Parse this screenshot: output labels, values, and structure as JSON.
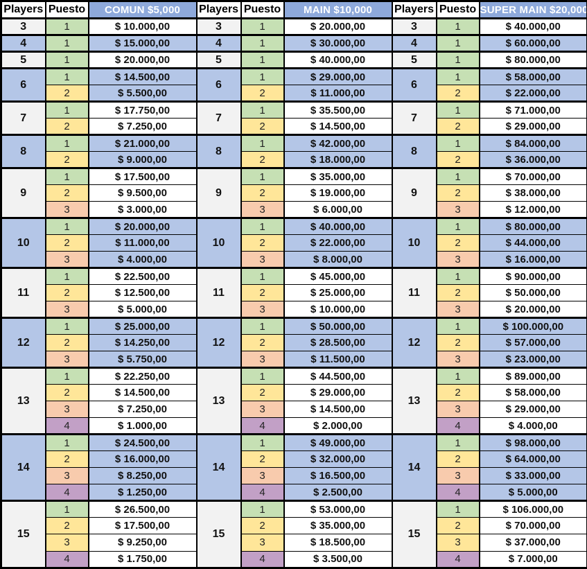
{
  "labels": {
    "players": "Players",
    "puesto": "Puesto"
  },
  "groups": [
    {
      "title": "COMUN $5,000"
    },
    {
      "title": "MAIN $10,000"
    },
    {
      "title": "SUPER MAIN $20,000"
    }
  ],
  "colors": {
    "header_blue": "#8EA9DB",
    "row_blue": "#B4C6E7",
    "light_players": "#F2F2F2",
    "position_1_green": "#C6E0B4",
    "position_2_yellow": "#FFE699",
    "position_3_orange": "#F8CBAD",
    "position_4_purple": "#C2A0C6",
    "border": "#000000"
  },
  "rows": [
    {
      "players": "3",
      "shade": "light",
      "positions": [
        {
          "puesto": "1",
          "color": "green",
          "values": [
            "$ 10.000,00",
            "$ 20.000,00",
            "$ 40.000,00"
          ]
        }
      ]
    },
    {
      "players": "4",
      "shade": "blue",
      "positions": [
        {
          "puesto": "1",
          "color": "green",
          "values": [
            "$ 15.000,00",
            "$ 30.000,00",
            "$ 60.000,00"
          ]
        }
      ]
    },
    {
      "players": "5",
      "shade": "light",
      "positions": [
        {
          "puesto": "1",
          "color": "green",
          "values": [
            "$ 20.000,00",
            "$ 40.000,00",
            "$ 80.000,00"
          ]
        }
      ]
    },
    {
      "players": "6",
      "shade": "blue",
      "positions": [
        {
          "puesto": "1",
          "color": "green",
          "values": [
            "$ 14.500,00",
            "$ 29.000,00",
            "$ 58.000,00"
          ]
        },
        {
          "puesto": "2",
          "color": "yellow",
          "values": [
            "$ 5.500,00",
            "$ 11.000,00",
            "$ 22.000,00"
          ]
        }
      ]
    },
    {
      "players": "7",
      "shade": "light",
      "positions": [
        {
          "puesto": "1",
          "color": "green",
          "values": [
            "$ 17.750,00",
            "$ 35.500,00",
            "$ 71.000,00"
          ]
        },
        {
          "puesto": "2",
          "color": "yellow",
          "values": [
            "$ 7.250,00",
            "$ 14.500,00",
            "$ 29.000,00"
          ]
        }
      ]
    },
    {
      "players": "8",
      "shade": "blue",
      "positions": [
        {
          "puesto": "1",
          "color": "green",
          "values": [
            "$ 21.000,00",
            "$ 42.000,00",
            "$ 84.000,00"
          ]
        },
        {
          "puesto": "2",
          "color": "yellow",
          "values": [
            "$ 9.000,00",
            "$ 18.000,00",
            "$ 36.000,00"
          ]
        }
      ]
    },
    {
      "players": "9",
      "shade": "light",
      "positions": [
        {
          "puesto": "1",
          "color": "green",
          "values": [
            "$ 17.500,00",
            "$ 35.000,00",
            "$ 70.000,00"
          ]
        },
        {
          "puesto": "2",
          "color": "yellow",
          "values": [
            "$ 9.500,00",
            "$ 19.000,00",
            "$ 38.000,00"
          ]
        },
        {
          "puesto": "3",
          "color": "orange",
          "values": [
            "$ 3.000,00",
            "$ 6.000,00",
            "$ 12.000,00"
          ]
        }
      ]
    },
    {
      "players": "10",
      "shade": "blue",
      "positions": [
        {
          "puesto": "1",
          "color": "green",
          "values": [
            "$ 20.000,00",
            "$ 40.000,00",
            "$ 80.000,00"
          ]
        },
        {
          "puesto": "2",
          "color": "yellow",
          "values": [
            "$ 11.000,00",
            "$ 22.000,00",
            "$ 44.000,00"
          ]
        },
        {
          "puesto": "3",
          "color": "orange",
          "values": [
            "$ 4.000,00",
            "$ 8.000,00",
            "$ 16.000,00"
          ]
        }
      ]
    },
    {
      "players": "11",
      "shade": "light",
      "positions": [
        {
          "puesto": "1",
          "color": "green",
          "values": [
            "$ 22.500,00",
            "$ 45.000,00",
            "$ 90.000,00"
          ]
        },
        {
          "puesto": "2",
          "color": "yellow",
          "values": [
            "$ 12.500,00",
            "$ 25.000,00",
            "$ 50.000,00"
          ]
        },
        {
          "puesto": "3",
          "color": "orange",
          "values": [
            "$ 5.000,00",
            "$ 10.000,00",
            "$ 20.000,00"
          ]
        }
      ]
    },
    {
      "players": "12",
      "shade": "blue",
      "positions": [
        {
          "puesto": "1",
          "color": "green",
          "values": [
            "$ 25.000,00",
            "$ 50.000,00",
            "$ 100.000,00"
          ]
        },
        {
          "puesto": "2",
          "color": "yellow",
          "values": [
            "$ 14.250,00",
            "$ 28.500,00",
            "$ 57.000,00"
          ]
        },
        {
          "puesto": "3",
          "color": "orange",
          "values": [
            "$ 5.750,00",
            "$ 11.500,00",
            "$ 23.000,00"
          ]
        }
      ]
    },
    {
      "players": "13",
      "shade": "light",
      "positions": [
        {
          "puesto": "1",
          "color": "green",
          "values": [
            "$ 22.250,00",
            "$ 44.500,00",
            "$ 89.000,00"
          ]
        },
        {
          "puesto": "2",
          "color": "yellow",
          "values": [
            "$ 14.500,00",
            "$ 29.000,00",
            "$ 58.000,00"
          ]
        },
        {
          "puesto": "3",
          "color": "orange",
          "values": [
            "$ 7.250,00",
            "$ 14.500,00",
            "$ 29.000,00"
          ]
        },
        {
          "puesto": "4",
          "color": "purple",
          "values": [
            "$ 1.000,00",
            "$ 2.000,00",
            "$ 4.000,00"
          ]
        }
      ]
    },
    {
      "players": "14",
      "shade": "blue",
      "positions": [
        {
          "puesto": "1",
          "color": "green",
          "values": [
            "$ 24.500,00",
            "$ 49.000,00",
            "$ 98.000,00"
          ]
        },
        {
          "puesto": "2",
          "color": "yellow",
          "values": [
            "$ 16.000,00",
            "$ 32.000,00",
            "$ 64.000,00"
          ]
        },
        {
          "puesto": "3",
          "color": "orange",
          "values": [
            "$ 8.250,00",
            "$ 16.500,00",
            "$ 33.000,00"
          ]
        },
        {
          "puesto": "4",
          "color": "purple",
          "values": [
            "$ 1.250,00",
            "$ 2.500,00",
            "$ 5.000,00"
          ]
        }
      ]
    },
    {
      "players": "15",
      "shade": "light",
      "positions": [
        {
          "puesto": "1",
          "color": "green",
          "values": [
            "$ 26.500,00",
            "$ 53.000,00",
            "$ 106.000,00"
          ]
        },
        {
          "puesto": "2",
          "color": "yellow",
          "values": [
            "$ 17.500,00",
            "$ 35.000,00",
            "$ 70.000,00"
          ]
        },
        {
          "puesto": "3",
          "color": "yellow",
          "values": [
            "$ 9.250,00",
            "$ 18.500,00",
            "$ 37.000,00"
          ]
        },
        {
          "puesto": "4",
          "color": "purple",
          "values": [
            "$ 1.750,00",
            "$ 3.500,00",
            "$ 7.000,00"
          ]
        }
      ]
    }
  ]
}
